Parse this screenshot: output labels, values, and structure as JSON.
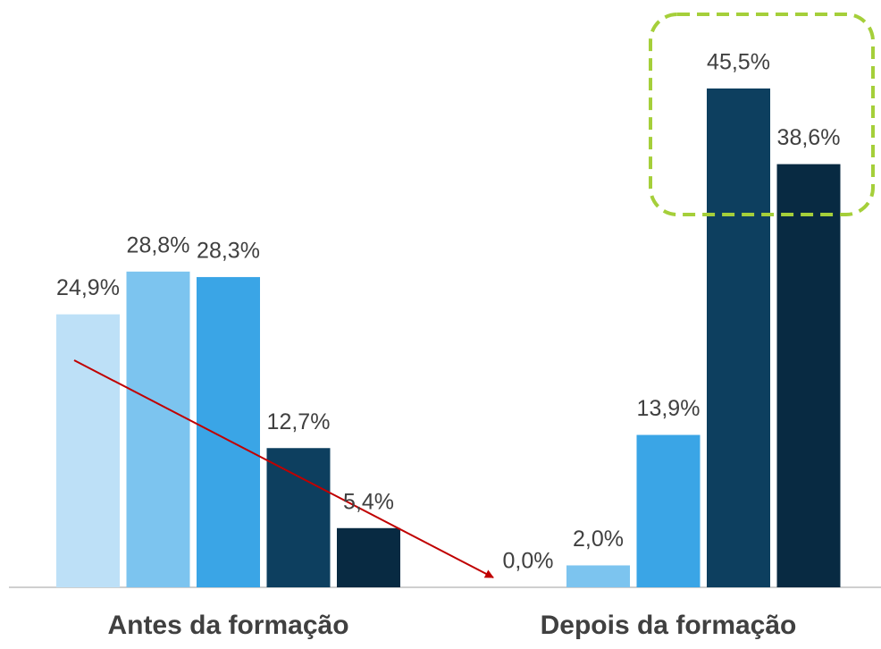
{
  "chart_data": {
    "type": "bar",
    "categories": [
      "Antes da formação",
      "Depois da formação"
    ],
    "series": [
      {
        "color": "#bde0f7",
        "values": [
          24.9,
          0.0
        ],
        "value_labels": [
          "24,9%",
          "0,0%"
        ]
      },
      {
        "color": "#7cc4ef",
        "values": [
          28.8,
          2.0
        ],
        "value_labels": [
          "28,8%",
          "2,0%"
        ]
      },
      {
        "color": "#3aa5e6",
        "values": [
          28.3,
          13.9
        ],
        "value_labels": [
          "28,3%",
          "13,9%"
        ]
      },
      {
        "color": "#0d3f5f",
        "values": [
          12.7,
          45.5
        ],
        "value_labels": [
          "12,7%",
          "45,5%"
        ]
      },
      {
        "color": "#082a42",
        "values": [
          5.4,
          38.6
        ],
        "value_labels": [
          "5,4%",
          "38,6%"
        ]
      }
    ]
  }
}
